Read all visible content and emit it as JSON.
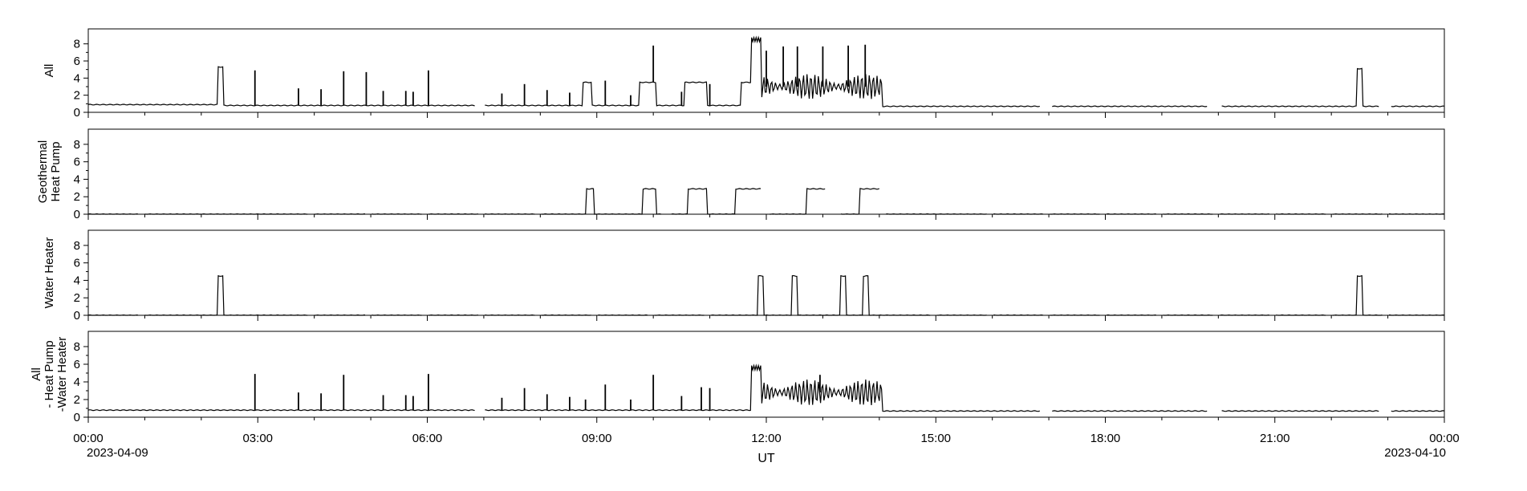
{
  "chart_data": {
    "type": "line",
    "shared_x": {
      "label": "UT",
      "range_hours": [
        0,
        24
      ],
      "start_date": "2023-04-09",
      "end_date": "2023-04-10",
      "major_ticks_hours": [
        0,
        3,
        6,
        9,
        12,
        15,
        18,
        21,
        24
      ],
      "major_tick_labels": [
        "00:00",
        "03:00",
        "06:00",
        "09:00",
        "12:00",
        "15:00",
        "18:00",
        "21:00",
        "00:00"
      ],
      "minor_ticks_every_hours": 1
    },
    "panels": [
      {
        "id": "all",
        "ylabel": [
          "All"
        ],
        "ylim": [
          0,
          9
        ],
        "yticks": [
          0,
          2,
          4,
          6,
          8
        ],
        "gaps": [
          [
            6.85,
            7.0
          ],
          [
            16.85,
            17.05
          ],
          [
            19.8,
            20.05
          ],
          [
            22.85,
            23.05
          ]
        ],
        "segments": [
          {
            "start": 0.0,
            "end": 2.3,
            "level": 0.9
          },
          {
            "start": 2.3,
            "end": 2.4,
            "level": 5.3
          },
          {
            "start": 2.4,
            "end": 8.75,
            "level": 0.8
          },
          {
            "start": 8.75,
            "end": 8.9,
            "level": 3.5
          },
          {
            "start": 8.9,
            "end": 9.75,
            "level": 0.8
          },
          {
            "start": 9.75,
            "end": 10.05,
            "level": 3.5
          },
          {
            "start": 10.05,
            "end": 10.55,
            "level": 0.8
          },
          {
            "start": 10.55,
            "end": 10.95,
            "level": 3.5
          },
          {
            "start": 10.95,
            "end": 11.55,
            "level": 0.8
          },
          {
            "start": 11.55,
            "end": 11.72,
            "level": 3.5
          },
          {
            "start": 11.72,
            "end": 11.9,
            "level": 8.5
          },
          {
            "start": 11.9,
            "end": 14.05,
            "level": 3.0
          },
          {
            "start": 14.05,
            "end": 24.0,
            "level": 0.7
          },
          {
            "start": 22.45,
            "end": 22.55,
            "level": 5.1
          }
        ],
        "spikes": [
          {
            "t": 2.95,
            "v": 4.9
          },
          {
            "t": 3.72,
            "v": 2.8
          },
          {
            "t": 4.12,
            "v": 2.7
          },
          {
            "t": 4.52,
            "v": 4.8
          },
          {
            "t": 4.92,
            "v": 4.7
          },
          {
            "t": 5.22,
            "v": 2.5
          },
          {
            "t": 5.62,
            "v": 2.5
          },
          {
            "t": 5.75,
            "v": 2.4
          },
          {
            "t": 6.02,
            "v": 4.9
          },
          {
            "t": 7.32,
            "v": 2.2
          },
          {
            "t": 7.72,
            "v": 3.3
          },
          {
            "t": 8.12,
            "v": 2.6
          },
          {
            "t": 8.52,
            "v": 2.3
          },
          {
            "t": 9.15,
            "v": 3.7
          },
          {
            "t": 9.6,
            "v": 2.0
          },
          {
            "t": 10.0,
            "v": 7.8
          },
          {
            "t": 10.5,
            "v": 2.4
          },
          {
            "t": 11.0,
            "v": 3.3
          },
          {
            "t": 12.0,
            "v": 7.2
          },
          {
            "t": 12.3,
            "v": 7.7
          },
          {
            "t": 12.55,
            "v": 7.7
          },
          {
            "t": 13.0,
            "v": 7.7
          },
          {
            "t": 13.45,
            "v": 7.8
          },
          {
            "t": 13.75,
            "v": 7.9
          }
        ]
      },
      {
        "id": "heat-pump",
        "ylabel": [
          "Geothermal",
          "Heat Pump"
        ],
        "ylim": [
          0,
          9
        ],
        "yticks": [
          0,
          2,
          4,
          6,
          8
        ],
        "gaps": [
          [
            0.9,
            1.0
          ],
          [
            3.9,
            4.0
          ],
          [
            4.9,
            5.0
          ],
          [
            5.9,
            6.0
          ],
          [
            6.9,
            7.0
          ],
          [
            7.9,
            8.0
          ],
          [
            10.15,
            10.3
          ],
          [
            11.9,
            12.05
          ],
          [
            13.05,
            13.3
          ],
          [
            14.0,
            14.1
          ],
          [
            15.9,
            16.0
          ],
          [
            16.9,
            17.0
          ],
          [
            17.9,
            18.0
          ],
          [
            18.9,
            19.0
          ],
          [
            19.9,
            20.0
          ],
          [
            20.9,
            21.0
          ],
          [
            21.9,
            22.0
          ],
          [
            22.9,
            23.0
          ]
        ],
        "pulses": [
          {
            "start": 8.8,
            "end": 8.95,
            "level": 2.9
          },
          {
            "start": 9.8,
            "end": 10.05,
            "level": 2.9
          },
          {
            "start": 10.6,
            "end": 10.95,
            "level": 2.9
          },
          {
            "start": 11.45,
            "end": 11.9,
            "level": 2.9
          },
          {
            "start": 12.7,
            "end": 13.05,
            "level": 2.9
          },
          {
            "start": 13.65,
            "end": 14.0,
            "level": 2.9
          }
        ]
      },
      {
        "id": "water-heater",
        "ylabel": [
          "Water Heater"
        ],
        "ylim": [
          0,
          9
        ],
        "yticks": [
          0,
          2,
          4,
          6,
          8
        ],
        "gaps": [
          [
            0.9,
            1.0
          ],
          [
            3.9,
            4.0
          ],
          [
            4.9,
            5.0
          ],
          [
            5.9,
            6.0
          ],
          [
            6.9,
            7.0
          ],
          [
            7.9,
            8.0
          ],
          [
            8.9,
            9.0
          ],
          [
            9.9,
            10.0
          ],
          [
            10.9,
            11.0
          ],
          [
            14.9,
            15.0
          ],
          [
            15.9,
            16.0
          ],
          [
            16.9,
            17.0
          ],
          [
            17.9,
            18.0
          ],
          [
            18.9,
            19.0
          ],
          [
            19.9,
            20.0
          ],
          [
            20.9,
            21.0
          ],
          [
            21.9,
            22.0
          ],
          [
            22.9,
            23.0
          ]
        ],
        "pulses": [
          {
            "start": 2.3,
            "end": 2.4,
            "level": 4.5
          },
          {
            "start": 11.85,
            "end": 11.95,
            "level": 4.5
          },
          {
            "start": 12.45,
            "end": 12.55,
            "level": 4.5
          },
          {
            "start": 13.3,
            "end": 13.4,
            "level": 4.5
          },
          {
            "start": 13.7,
            "end": 13.8,
            "level": 4.5
          },
          {
            "start": 22.45,
            "end": 22.55,
            "level": 4.5
          }
        ]
      },
      {
        "id": "remainder",
        "ylabel": [
          "All",
          "- Heat Pump",
          "-Water Heater"
        ],
        "ylim": [
          0,
          9
        ],
        "yticks": [
          0,
          2,
          4,
          6,
          8
        ],
        "gaps": [
          [
            6.85,
            7.0
          ],
          [
            16.85,
            17.05
          ],
          [
            19.8,
            20.05
          ],
          [
            22.85,
            23.05
          ]
        ],
        "segments": [
          {
            "start": 0.0,
            "end": 11.72,
            "level": 0.8
          },
          {
            "start": 11.72,
            "end": 11.9,
            "level": 5.6
          },
          {
            "start": 11.9,
            "end": 14.05,
            "level": 2.8
          },
          {
            "start": 14.05,
            "end": 24.0,
            "level": 0.7
          }
        ],
        "spikes": [
          {
            "t": 2.95,
            "v": 4.9
          },
          {
            "t": 3.72,
            "v": 2.8
          },
          {
            "t": 4.12,
            "v": 2.7
          },
          {
            "t": 4.52,
            "v": 4.8
          },
          {
            "t": 5.22,
            "v": 2.5
          },
          {
            "t": 5.62,
            "v": 2.5
          },
          {
            "t": 5.75,
            "v": 2.4
          },
          {
            "t": 6.02,
            "v": 4.9
          },
          {
            "t": 7.32,
            "v": 2.2
          },
          {
            "t": 7.72,
            "v": 3.3
          },
          {
            "t": 8.12,
            "v": 2.6
          },
          {
            "t": 8.52,
            "v": 2.3
          },
          {
            "t": 8.8,
            "v": 2.0
          },
          {
            "t": 9.15,
            "v": 3.7
          },
          {
            "t": 9.6,
            "v": 2.0
          },
          {
            "t": 10.0,
            "v": 4.8
          },
          {
            "t": 10.5,
            "v": 2.4
          },
          {
            "t": 10.85,
            "v": 3.4
          },
          {
            "t": 11.0,
            "v": 3.3
          },
          {
            "t": 12.95,
            "v": 4.8
          }
        ]
      }
    ]
  }
}
